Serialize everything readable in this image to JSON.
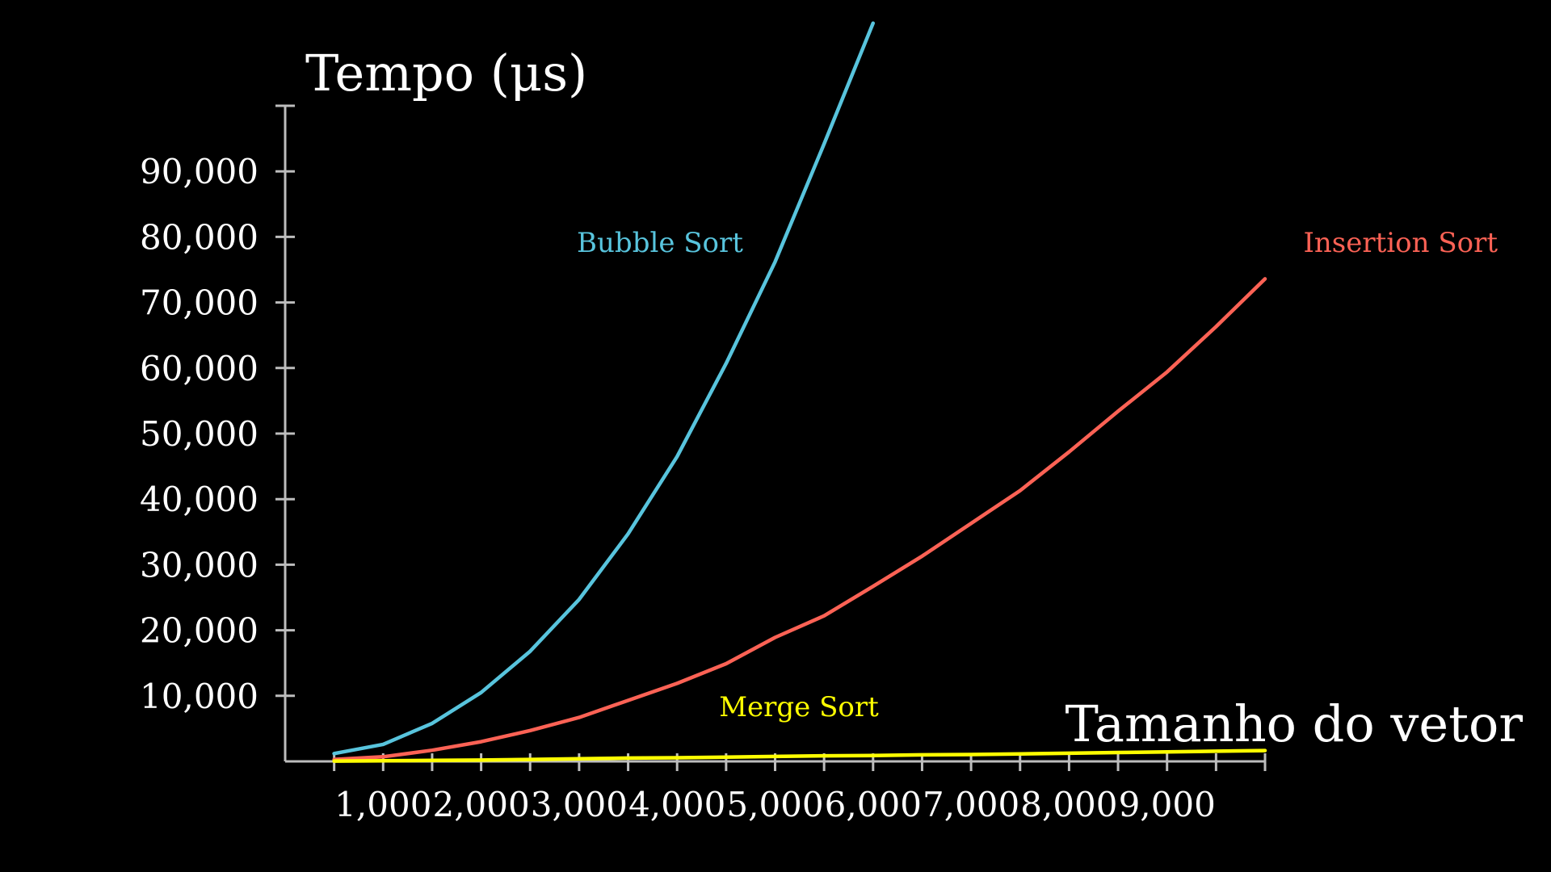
{
  "chart_data": {
    "type": "line",
    "title": "",
    "xlabel": "Tamanho do vetor",
    "ylabel": "Tempo (μs)",
    "xlim": [
      0,
      10000
    ],
    "ylim": [
      0,
      100000
    ],
    "x_ticks": [
      1000,
      2000,
      3000,
      4000,
      5000,
      6000,
      7000,
      8000,
      9000
    ],
    "x_tick_labels": [
      "1,000",
      "2,000",
      "3,000",
      "4,000",
      "5,000",
      "6,000",
      "7,000",
      "8,000",
      "9,000"
    ],
    "y_ticks": [
      10000,
      20000,
      30000,
      40000,
      50000,
      60000,
      70000,
      80000,
      90000
    ],
    "y_tick_labels": [
      "10,000",
      "20,000",
      "30,000",
      "40,000",
      "50,000",
      "60,000",
      "70,000",
      "80,000",
      "90,000"
    ],
    "grid": false,
    "x": [
      500,
      1000,
      1500,
      2000,
      2500,
      3000,
      3500,
      4000,
      4500,
      5000,
      5500,
      6000,
      6500,
      7000,
      7500,
      8000,
      8500,
      9000,
      9500,
      10000
    ],
    "series": [
      {
        "name": "Bubble Sort",
        "color": "#58c4dd",
        "values": [
          1200,
          2600,
          5800,
          10500,
          16800,
          24700,
          34700,
          46500,
          60700,
          76200,
          94200,
          112600,
          null,
          null,
          null,
          null,
          null,
          null,
          null,
          null
        ]
      },
      {
        "name": "Insertion Sort",
        "color": "#fc6255",
        "values": [
          300,
          700,
          1700,
          3000,
          4700,
          6700,
          9300,
          11900,
          14900,
          18900,
          22200,
          26700,
          31300,
          36300,
          41300,
          47200,
          53400,
          59400,
          66300,
          73600
        ]
      },
      {
        "name": "Merge Sort",
        "color": "#ffff00",
        "values": [
          50,
          100,
          150,
          200,
          300,
          400,
          500,
          550,
          650,
          750,
          850,
          900,
          1000,
          1050,
          1150,
          1250,
          1350,
          1450,
          1550,
          1650
        ]
      }
    ]
  }
}
